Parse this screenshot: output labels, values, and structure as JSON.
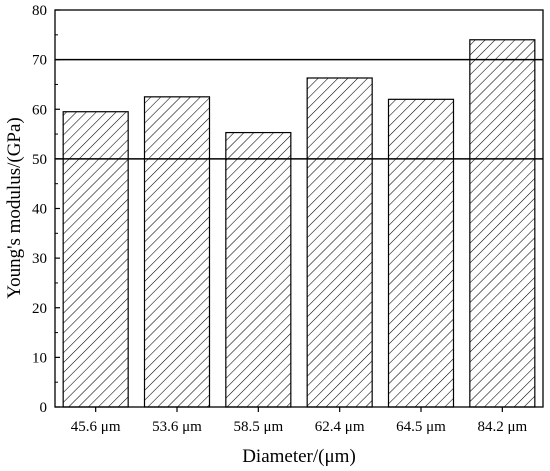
{
  "chart_data": {
    "type": "bar",
    "title": "",
    "xlabel": "Diameter/(μm)",
    "ylabel": "Young's modulus/(GPa)",
    "categories": [
      "45.6 μm",
      "53.6 μm",
      "58.5 μm",
      "62.4 μm",
      "64.5 μm",
      "84.2 μm"
    ],
    "values": [
      59.5,
      62.5,
      55.3,
      66.3,
      62.0,
      74.0
    ],
    "ylim": [
      0,
      80
    ],
    "yticks": [
      0,
      10,
      20,
      30,
      40,
      50,
      60,
      70,
      80
    ],
    "reference_lines": [
      50,
      70
    ],
    "bar_fill": "diagonal-hatch",
    "colors": {
      "bar_stroke": "#000000",
      "hatch": "#000000",
      "background": "#ffffff"
    },
    "grid": false,
    "legend": "none"
  }
}
